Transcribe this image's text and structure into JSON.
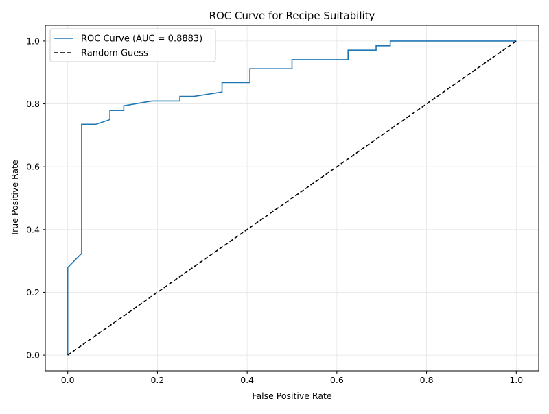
{
  "chart_data": {
    "type": "line",
    "title": "ROC Curve for Recipe Suitability",
    "xlabel": "False Positive Rate",
    "ylabel": "True Positive Rate",
    "xlim": [
      -0.05,
      1.05
    ],
    "ylim": [
      -0.05,
      1.05
    ],
    "xticks": [
      0.0,
      0.2,
      0.4,
      0.6,
      0.8,
      1.0
    ],
    "yticks": [
      0.0,
      0.2,
      0.4,
      0.6,
      0.8,
      1.0
    ],
    "xtick_labels": [
      "0.0",
      "0.2",
      "0.4",
      "0.6",
      "0.8",
      "1.0"
    ],
    "ytick_labels": [
      "0.0",
      "0.2",
      "0.4",
      "0.6",
      "0.8",
      "1.0"
    ],
    "grid": true,
    "legend_position": "top-left",
    "series": [
      {
        "name": "ROC Curve (AUC = 0.8883)",
        "color": "#1f77b4",
        "style": "solid",
        "x": [
          0.0,
          0.0,
          0.031,
          0.031,
          0.0625,
          0.094,
          0.094,
          0.125,
          0.125,
          0.1875,
          0.25,
          0.25,
          0.281,
          0.344,
          0.344,
          0.406,
          0.406,
          0.5,
          0.5,
          0.625,
          0.625,
          0.6875,
          0.6875,
          0.719,
          0.719,
          1.0
        ],
        "y": [
          0.0,
          0.279,
          0.324,
          0.735,
          0.735,
          0.75,
          0.779,
          0.779,
          0.794,
          0.809,
          0.809,
          0.824,
          0.824,
          0.838,
          0.868,
          0.868,
          0.912,
          0.912,
          0.941,
          0.941,
          0.971,
          0.971,
          0.985,
          0.985,
          1.0,
          1.0
        ]
      },
      {
        "name": "Random Guess",
        "color": "#000000",
        "style": "dashed",
        "x": [
          0.0,
          1.0
        ],
        "y": [
          0.0,
          1.0
        ]
      }
    ]
  }
}
